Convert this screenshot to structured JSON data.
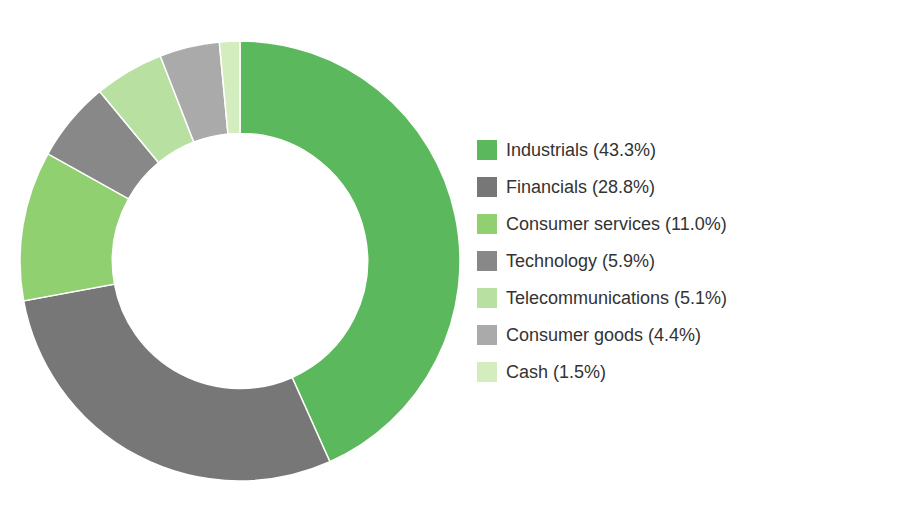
{
  "chart_data": {
    "type": "donut",
    "categories": [
      "Industrials (43.3%)",
      "Financials (28.8%)",
      "Consumer services (11.0%)",
      "Technology (5.9%)",
      "Telecommunications (5.1%)",
      "Consumer goods (4.4%)",
      "Cash (1.5%)"
    ],
    "values": [
      43.3,
      28.8,
      11.0,
      5.9,
      5.1,
      4.4,
      1.5
    ],
    "colors": [
      "#5cb85c",
      "#777777",
      "#90d070",
      "#888888",
      "#b8e0a0",
      "#aaaaaa",
      "#d4edbe"
    ],
    "legend": "right"
  }
}
